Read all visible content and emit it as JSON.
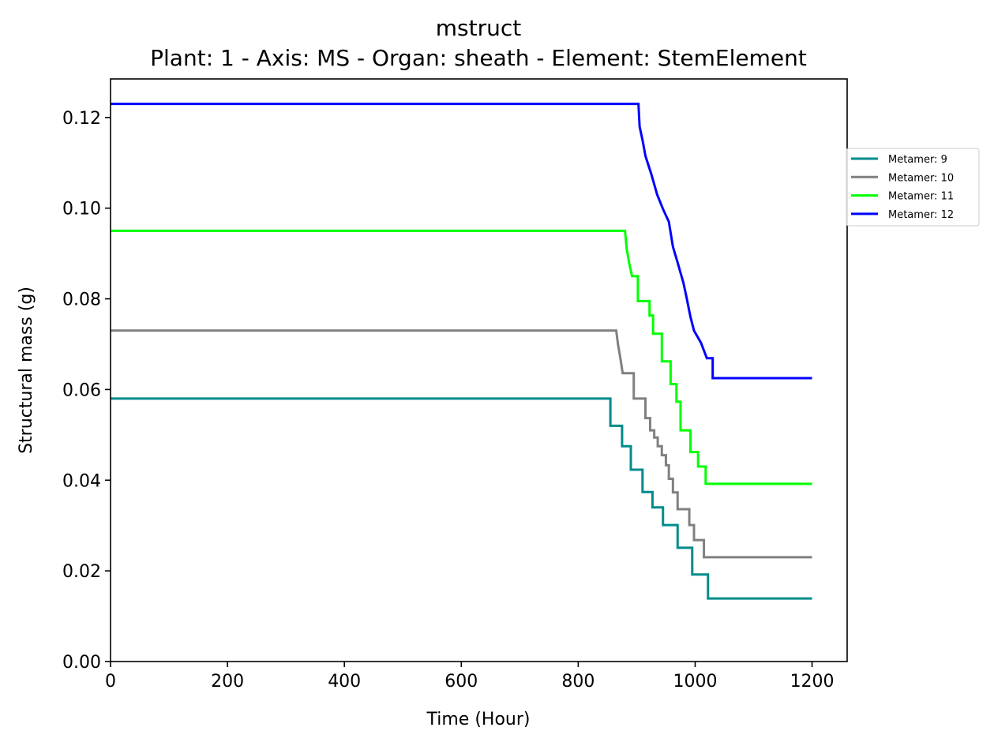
{
  "chart_data": {
    "type": "line",
    "title": "mstruct",
    "subtitle": "Plant: 1 - Axis: MS - Organ: sheath - Element: StemElement",
    "xlabel": "Time (Hour)",
    "ylabel": "Structural mass (g)",
    "xlim": [
      0,
      1260
    ],
    "ylim": [
      0,
      0.1285
    ],
    "xticks": [
      0,
      200,
      400,
      600,
      800,
      1000,
      1200
    ],
    "xtick_labels": [
      "0",
      "200",
      "400",
      "600",
      "800",
      "1000",
      "1200"
    ],
    "yticks": [
      0,
      0.02,
      0.04,
      0.06,
      0.08,
      0.1,
      0.12
    ],
    "ytick_labels": [
      "0.00",
      "0.02",
      "0.04",
      "0.06",
      "0.08",
      "0.10",
      "0.12"
    ],
    "grid": false,
    "legend_position": "outside-right",
    "series": [
      {
        "name": "Metamer: 9",
        "color": "#008b8b",
        "x": [
          0,
          855,
          855,
          875,
          875,
          890,
          890,
          910,
          910,
          927,
          927,
          945,
          945,
          970,
          970,
          995,
          995,
          1022,
          1022,
          1200
        ],
        "y": [
          0.058,
          0.058,
          0.052,
          0.052,
          0.0475,
          0.0475,
          0.0423,
          0.0423,
          0.0374,
          0.0374,
          0.034,
          0.034,
          0.0301,
          0.0301,
          0.0251,
          0.0251,
          0.0192,
          0.0192,
          0.0139,
          0.0139
        ]
      },
      {
        "name": "Metamer: 10",
        "color": "#808080",
        "x": [
          0,
          865,
          868,
          872,
          876,
          876,
          895,
          895,
          915,
          915,
          923,
          923,
          930,
          930,
          936,
          936,
          943,
          943,
          950,
          950,
          955,
          955,
          962,
          962,
          970,
          970,
          990,
          990,
          998,
          998,
          1015,
          1015,
          1045,
          1045,
          1200
        ],
        "y": [
          0.073,
          0.073,
          0.07,
          0.067,
          0.0636,
          0.0636,
          0.0636,
          0.058,
          0.058,
          0.0537,
          0.0537,
          0.051,
          0.051,
          0.0494,
          0.0494,
          0.0475,
          0.0475,
          0.0455,
          0.0455,
          0.0433,
          0.0433,
          0.0403,
          0.0403,
          0.0373,
          0.0373,
          0.0336,
          0.0336,
          0.0301,
          0.0301,
          0.0268,
          0.0268,
          0.023,
          0.023,
          0.023,
          0.023
        ]
      },
      {
        "name": "Metamer: 11",
        "color": "#00ff00",
        "x": [
          0,
          880,
          883,
          887,
          892,
          892,
          902,
          902,
          922,
          922,
          928,
          928,
          943,
          943,
          958,
          958,
          968,
          968,
          975,
          975,
          992,
          992,
          1005,
          1005,
          1018,
          1018,
          1042,
          1042,
          1200
        ],
        "y": [
          0.095,
          0.095,
          0.091,
          0.088,
          0.085,
          0.085,
          0.085,
          0.0795,
          0.0795,
          0.0763,
          0.0763,
          0.0723,
          0.0723,
          0.0662,
          0.0662,
          0.0612,
          0.0612,
          0.0573,
          0.0573,
          0.051,
          0.051,
          0.0462,
          0.0462,
          0.043,
          0.043,
          0.0392,
          0.0392,
          0.0392,
          0.0392
        ]
      },
      {
        "name": "Metamer: 12",
        "color": "#0000ff",
        "x": [
          0,
          903,
          905,
          910,
          915,
          915,
          925,
          925,
          935,
          935,
          945,
          945,
          955,
          955,
          962,
          962,
          970,
          970,
          980,
          980,
          985,
          985,
          992,
          992,
          998,
          998,
          1010,
          1010,
          1020,
          1020,
          1030,
          1030,
          1045,
          1045,
          1200
        ],
        "y": [
          0.123,
          0.123,
          0.118,
          0.115,
          0.1115,
          0.1115,
          0.1075,
          0.1075,
          0.103,
          0.103,
          0.0998,
          0.0998,
          0.097,
          0.097,
          0.0915,
          0.0915,
          0.088,
          0.088,
          0.0835,
          0.0835,
          0.0805,
          0.0805,
          0.076,
          0.076,
          0.073,
          0.073,
          0.0703,
          0.0703,
          0.0669,
          0.0669,
          0.0669,
          0.0625,
          0.0625,
          0.0625,
          0.0625
        ]
      }
    ]
  }
}
